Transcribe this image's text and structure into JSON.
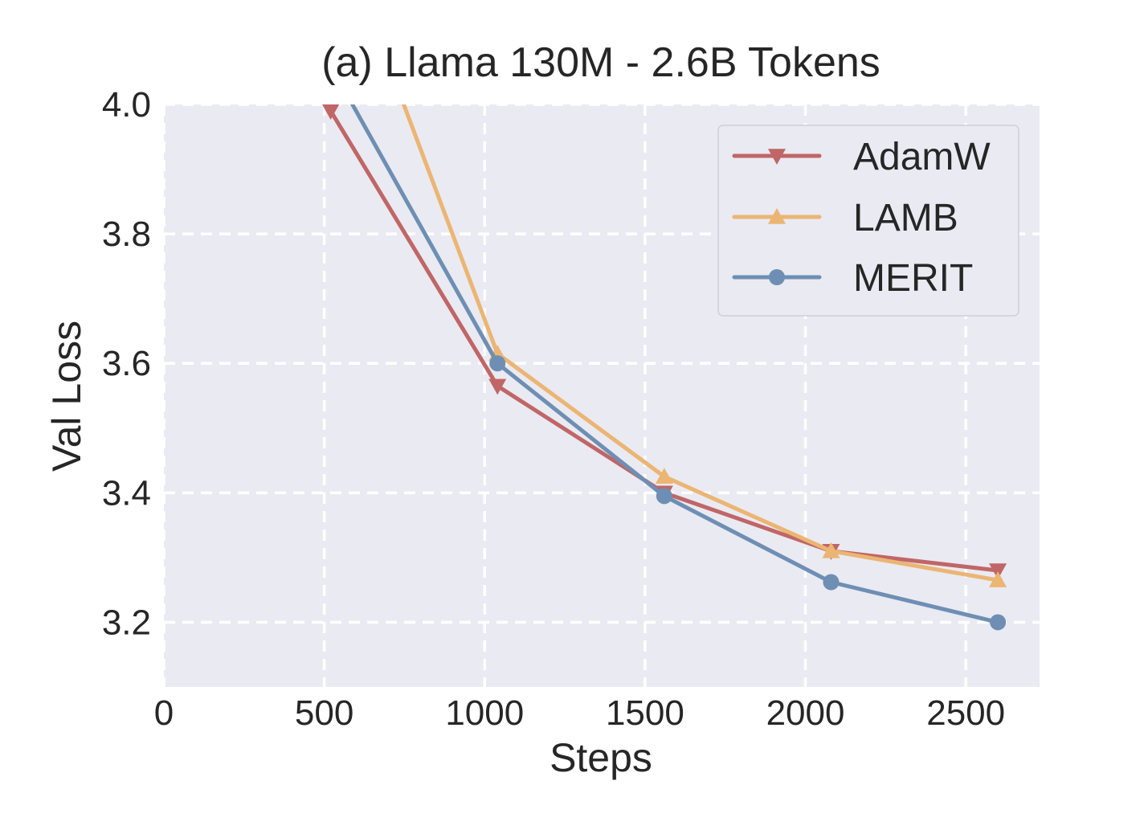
{
  "chart_data": {
    "type": "line",
    "title": "(a) Llama 130M - 2.6B Tokens",
    "xlabel": "Steps",
    "ylabel": "Val Loss",
    "xlim": [
      0,
      2730
    ],
    "ylim": [
      3.1,
      4.0
    ],
    "xticks": [
      0,
      500,
      1000,
      1500,
      2000,
      2500
    ],
    "xtick_labels": [
      "0",
      "500",
      "1000",
      "1500",
      "2000",
      "2500"
    ],
    "yticks": [
      3.2,
      3.4,
      3.6,
      3.8,
      4.0
    ],
    "ytick_labels": [
      "3.2",
      "3.4",
      "3.6",
      "3.8",
      "4.0"
    ],
    "grid": true,
    "legend_position": "top-right",
    "series": [
      {
        "name": "AdamW",
        "color": "#c06666",
        "marker": "triangle-down",
        "x": [
          520,
          1040,
          1560,
          2080,
          2600
        ],
        "y": [
          3.99,
          3.565,
          3.4,
          3.31,
          3.28
        ]
      },
      {
        "name": "LAMB",
        "color": "#ebb573",
        "marker": "triangle-up",
        "x": [
          520,
          1040,
          1560,
          2080,
          2600
        ],
        "y": [
          4.3,
          3.615,
          3.425,
          3.31,
          3.265
        ]
      },
      {
        "name": "MERIT",
        "color": "#6e8fb3",
        "marker": "circle",
        "x": [
          520,
          1040,
          1560,
          2080,
          2600
        ],
        "y": [
          4.06,
          3.6,
          3.395,
          3.262,
          3.2
        ]
      }
    ]
  }
}
